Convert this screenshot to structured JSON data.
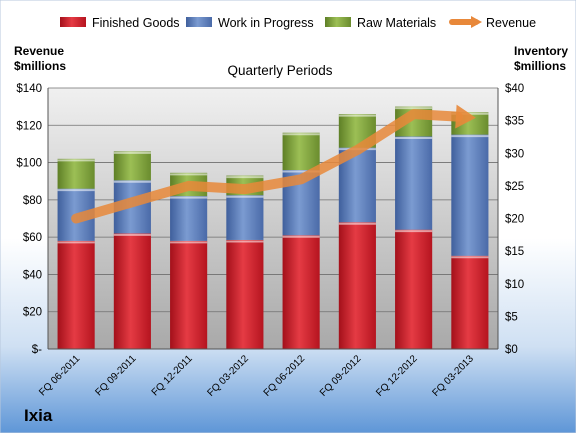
{
  "chart_data": {
    "type": "bar",
    "subtitle": "Quarterly Periods",
    "company": "Ixia",
    "left_axis": {
      "title_line1": "Revenue",
      "title_line2": "$millions",
      "ylim": [
        0,
        140
      ],
      "ticks": [
        "$-",
        "$20",
        "$40",
        "$60",
        "$80",
        "$100",
        "$120",
        "$140"
      ]
    },
    "right_axis": {
      "title_line1": "Inventory",
      "title_line2": "$millions",
      "ylim": [
        0,
        40
      ],
      "ticks": [
        "$0",
        "$5",
        "$10",
        "$15",
        "$20",
        "$25",
        "$30",
        "$35",
        "$40"
      ]
    },
    "categories": [
      "FQ 06-2011",
      "FQ 09-2011",
      "FQ 12-2011",
      "FQ 03-2012",
      "FQ 06-2012",
      "FQ 09-2012",
      "FQ 12-2012",
      "FQ 03-2013"
    ],
    "stacked": true,
    "series": [
      {
        "name": "Finished Goods",
        "type": "bar",
        "axis": "left",
        "color": "#d9232e",
        "values": [
          58,
          62,
          58,
          58.5,
          61,
          68,
          64,
          50
        ]
      },
      {
        "name": "Work in Progress",
        "type": "bar",
        "axis": "left",
        "color": "#5b7fbe",
        "values": [
          28,
          28.5,
          24,
          24,
          35,
          40,
          50,
          65
        ]
      },
      {
        "name": "Raw Materials",
        "type": "bar",
        "axis": "left",
        "color": "#7fa33b",
        "values": [
          16,
          15.5,
          12.5,
          10.5,
          20,
          18,
          16,
          12
        ]
      },
      {
        "name": "Revenue",
        "type": "line",
        "axis": "right",
        "color": "#e8883a",
        "values": [
          20,
          22.5,
          25,
          24.5,
          26,
          30.5,
          36,
          35.5
        ]
      }
    ],
    "legend": "top",
    "grid": true
  }
}
